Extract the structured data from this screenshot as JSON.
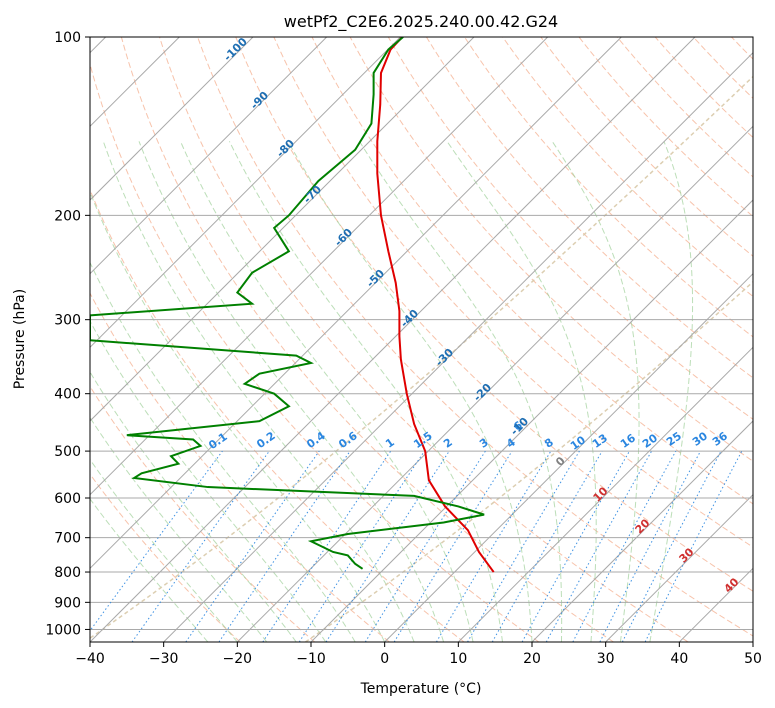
{
  "chart_data": {
    "type": "line",
    "title": "wetPf2_C2E6.2025.240.00.42.G24",
    "xlabel": "Temperature (°C)",
    "ylabel": "Pressure (hPa)",
    "xlim": [
      -40,
      50
    ],
    "ylim": [
      1050,
      100
    ],
    "y_scale": "log",
    "grid": true,
    "x_ticks": [
      "−40",
      "−30",
      "−20",
      "−10",
      "0",
      "10",
      "20",
      "30",
      "40",
      "50"
    ],
    "x_tick_values": [
      -40,
      -30,
      -20,
      -10,
      0,
      10,
      20,
      30,
      40,
      50
    ],
    "y_ticks": [
      "100",
      "200",
      "300",
      "400",
      "500",
      "600",
      "700",
      "800",
      "900",
      "1000"
    ],
    "y_tick_values": [
      100,
      200,
      300,
      400,
      500,
      600,
      700,
      800,
      900,
      1000
    ],
    "series": [
      {
        "color": "#e00000",
        "points": [
          [
            100,
            2.4
          ],
          [
            105,
            0.8
          ],
          [
            115,
            -0.5
          ],
          [
            130,
            -0.6
          ],
          [
            150,
            -1.0
          ],
          [
            170,
            -1.0
          ],
          [
            200,
            -0.5
          ],
          [
            230,
            0.5
          ],
          [
            260,
            1.5
          ],
          [
            290,
            2.0
          ],
          [
            320,
            2.0
          ],
          [
            350,
            2.2
          ],
          [
            400,
            3.0
          ],
          [
            450,
            4.0
          ],
          [
            500,
            5.5
          ],
          [
            560,
            6.0
          ],
          [
            620,
            8.2
          ],
          [
            680,
            11.3
          ],
          [
            740,
            12.8
          ],
          [
            800,
            14.8
          ]
        ]
      },
      {
        "color": "#008000",
        "points": [
          [
            100,
            2.5
          ],
          [
            105,
            0.5
          ],
          [
            115,
            -1.5
          ],
          [
            125,
            -1.5
          ],
          [
            140,
            -1.8
          ],
          [
            155,
            -4.0
          ],
          [
            175,
            -9.0
          ],
          [
            200,
            -13.0
          ],
          [
            210,
            -15.0
          ],
          [
            230,
            -13.0
          ],
          [
            250,
            -18.0
          ],
          [
            270,
            -20.0
          ],
          [
            282,
            -18.0
          ],
          [
            295,
            -40.0
          ],
          [
            325,
            -40.0
          ],
          [
            345,
            -12.0
          ],
          [
            355,
            -10.0
          ],
          [
            370,
            -17.0
          ],
          [
            385,
            -19.0
          ],
          [
            400,
            -15.0
          ],
          [
            420,
            -13.0
          ],
          [
            445,
            -17.0
          ],
          [
            470,
            -35.0
          ],
          [
            478,
            -26.0
          ],
          [
            490,
            -25.0
          ],
          [
            510,
            -29.0
          ],
          [
            525,
            -28.0
          ],
          [
            545,
            -33.0
          ],
          [
            555,
            -34.0
          ],
          [
            575,
            -24.0
          ],
          [
            595,
            4.0
          ],
          [
            620,
            10.0
          ],
          [
            640,
            13.5
          ],
          [
            660,
            8.0
          ],
          [
            690,
            -5.0
          ],
          [
            710,
            -10.0
          ],
          [
            740,
            -7.0
          ],
          [
            750,
            -5.0
          ],
          [
            775,
            -4.0
          ],
          [
            790,
            -3.0
          ]
        ]
      }
    ],
    "isotherm_labels": [
      "-100",
      "-90",
      "-80",
      "-70",
      "-60",
      "-50",
      "-40",
      "-30",
      "-20",
      "-10",
      "0",
      "10",
      "20",
      "30",
      "40"
    ],
    "mixing_ratio_labels": [
      "0.1",
      "0.2",
      "0.4",
      "0.6",
      "1",
      "1.5",
      "2",
      "3",
      "4",
      "6",
      "8",
      "10",
      "13",
      "16",
      "20",
      "25",
      "30",
      "36"
    ],
    "mixing_ratio_values": [
      0.1,
      0.2,
      0.4,
      0.6,
      1,
      1.5,
      2,
      3,
      4,
      6,
      8,
      10,
      13,
      16,
      20,
      25,
      30,
      36
    ],
    "colors": {
      "isotherm": "#a9a9a9",
      "isobar": "#a9a9a9",
      "dry_adiabat": "#f4a988",
      "moist_adiabat": "#9fd09a",
      "mixing_ratio": "#2a86e0",
      "isotherm_label_cold": "#1f6fb3",
      "isotherm_label_warm": "#d03030",
      "isotherm_label_zero": "#808080",
      "special": "#d8c9a8"
    }
  }
}
